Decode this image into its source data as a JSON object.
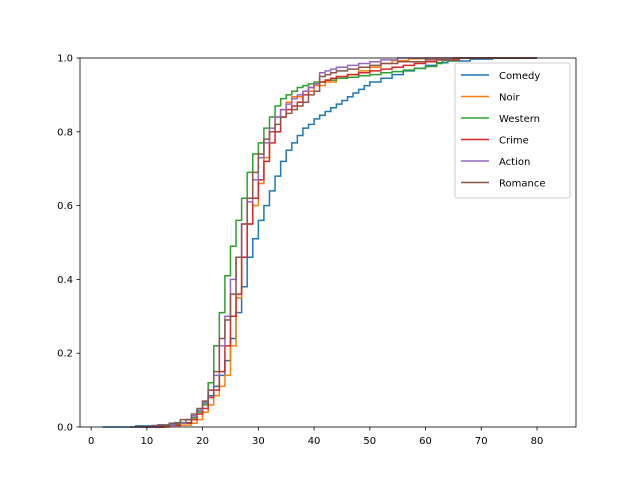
{
  "chart_data": {
    "type": "line",
    "subtype": "step-ecdf",
    "title": "",
    "xlabel": "",
    "ylabel": "",
    "xlim": [
      -2,
      87
    ],
    "ylim": [
      0,
      1
    ],
    "xticks": [
      0,
      10,
      20,
      30,
      40,
      50,
      60,
      70,
      80
    ],
    "yticks": [
      0.0,
      0.2,
      0.4,
      0.6,
      0.8,
      1.0
    ],
    "xtick_labels": [
      "0",
      "10",
      "20",
      "30",
      "40",
      "50",
      "60",
      "70",
      "80"
    ],
    "ytick_labels": [
      "0.0",
      "0.2",
      "0.4",
      "0.6",
      "0.8",
      "1.0"
    ],
    "grid": false,
    "legend_position": "upper right",
    "series": [
      {
        "name": "Comedy",
        "color": "#1f77b4",
        "points": [
          [
            2,
            0
          ],
          [
            8,
            0.003
          ],
          [
            12,
            0.006
          ],
          [
            15,
            0.012
          ],
          [
            17,
            0.02
          ],
          [
            18,
            0.03
          ],
          [
            19,
            0.045
          ],
          [
            20,
            0.065
          ],
          [
            21,
            0.085
          ],
          [
            22,
            0.11
          ],
          [
            23,
            0.14
          ],
          [
            24,
            0.18
          ],
          [
            25,
            0.24
          ],
          [
            26,
            0.31
          ],
          [
            27,
            0.38
          ],
          [
            28,
            0.46
          ],
          [
            29,
            0.51
          ],
          [
            30,
            0.56
          ],
          [
            31,
            0.6
          ],
          [
            32,
            0.64
          ],
          [
            33,
            0.68
          ],
          [
            34,
            0.72
          ],
          [
            35,
            0.75
          ],
          [
            36,
            0.77
          ],
          [
            37,
            0.79
          ],
          [
            38,
            0.81
          ],
          [
            39,
            0.82
          ],
          [
            40,
            0.835
          ],
          [
            41,
            0.845
          ],
          [
            42,
            0.855
          ],
          [
            43,
            0.865
          ],
          [
            44,
            0.875
          ],
          [
            45,
            0.885
          ],
          [
            46,
            0.895
          ],
          [
            47,
            0.905
          ],
          [
            48,
            0.915
          ],
          [
            49,
            0.925
          ],
          [
            50,
            0.935
          ],
          [
            52,
            0.945
          ],
          [
            54,
            0.955
          ],
          [
            56,
            0.965
          ],
          [
            58,
            0.972
          ],
          [
            60,
            0.98
          ],
          [
            62,
            0.987
          ],
          [
            64,
            0.992
          ],
          [
            68,
            0.997
          ],
          [
            72,
            1.0
          ]
        ]
      },
      {
        "name": "Noir",
        "color": "#ff7f0e",
        "points": [
          [
            10,
            0
          ],
          [
            14,
            0.005
          ],
          [
            18,
            0.01
          ],
          [
            19,
            0.02
          ],
          [
            20,
            0.04
          ],
          [
            21,
            0.06
          ],
          [
            22,
            0.085
          ],
          [
            23,
            0.11
          ],
          [
            24,
            0.14
          ],
          [
            25,
            0.22
          ],
          [
            26,
            0.35
          ],
          [
            27,
            0.46
          ],
          [
            28,
            0.55
          ],
          [
            29,
            0.6
          ],
          [
            30,
            0.66
          ],
          [
            31,
            0.73
          ],
          [
            32,
            0.8
          ],
          [
            33,
            0.84
          ],
          [
            34,
            0.86
          ],
          [
            35,
            0.88
          ],
          [
            36,
            0.895
          ],
          [
            38,
            0.91
          ],
          [
            40,
            0.925
          ],
          [
            42,
            0.935
          ],
          [
            44,
            0.945
          ],
          [
            46,
            0.955
          ],
          [
            48,
            0.965
          ],
          [
            50,
            0.975
          ],
          [
            52,
            0.985
          ],
          [
            54,
            0.993
          ],
          [
            57,
            0.998
          ],
          [
            60,
            1.0
          ]
        ]
      },
      {
        "name": "Western",
        "color": "#2ca02c",
        "points": [
          [
            9,
            0
          ],
          [
            13,
            0.006
          ],
          [
            16,
            0.012
          ],
          [
            18,
            0.025
          ],
          [
            19,
            0.04
          ],
          [
            20,
            0.06
          ],
          [
            21,
            0.12
          ],
          [
            22,
            0.22
          ],
          [
            23,
            0.31
          ],
          [
            24,
            0.41
          ],
          [
            25,
            0.49
          ],
          [
            26,
            0.56
          ],
          [
            27,
            0.62
          ],
          [
            28,
            0.69
          ],
          [
            29,
            0.74
          ],
          [
            30,
            0.77
          ],
          [
            31,
            0.81
          ],
          [
            32,
            0.84
          ],
          [
            33,
            0.87
          ],
          [
            34,
            0.89
          ],
          [
            35,
            0.9
          ],
          [
            36,
            0.91
          ],
          [
            37,
            0.92
          ],
          [
            38,
            0.925
          ],
          [
            39,
            0.93
          ],
          [
            40,
            0.935
          ],
          [
            42,
            0.94
          ],
          [
            44,
            0.945
          ],
          [
            46,
            0.948
          ],
          [
            48,
            0.952
          ],
          [
            50,
            0.955
          ],
          [
            52,
            0.96
          ],
          [
            54,
            0.963
          ],
          [
            56,
            0.967
          ],
          [
            58,
            0.972
          ],
          [
            60,
            0.977
          ],
          [
            62,
            0.985
          ],
          [
            63,
            0.993
          ],
          [
            66,
            1.0
          ]
        ]
      },
      {
        "name": "Crime",
        "color": "#d62728",
        "points": [
          [
            9,
            0
          ],
          [
            13,
            0.004
          ],
          [
            16,
            0.01
          ],
          [
            18,
            0.02
          ],
          [
            19,
            0.035
          ],
          [
            20,
            0.05
          ],
          [
            21,
            0.08
          ],
          [
            22,
            0.1
          ],
          [
            23,
            0.15
          ],
          [
            24,
            0.22
          ],
          [
            25,
            0.3
          ],
          [
            26,
            0.36
          ],
          [
            27,
            0.46
          ],
          [
            28,
            0.55
          ],
          [
            29,
            0.62
          ],
          [
            30,
            0.67
          ],
          [
            31,
            0.72
          ],
          [
            32,
            0.77
          ],
          [
            33,
            0.8
          ],
          [
            34,
            0.84
          ],
          [
            35,
            0.86
          ],
          [
            36,
            0.87
          ],
          [
            37,
            0.88
          ],
          [
            38,
            0.9
          ],
          [
            39,
            0.92
          ],
          [
            40,
            0.93
          ],
          [
            41,
            0.935
          ],
          [
            42,
            0.94
          ],
          [
            43,
            0.945
          ],
          [
            44,
            0.95
          ],
          [
            46,
            0.955
          ],
          [
            48,
            0.96
          ],
          [
            50,
            0.965
          ],
          [
            52,
            0.97
          ],
          [
            54,
            0.975
          ],
          [
            56,
            0.98
          ],
          [
            58,
            0.985
          ],
          [
            60,
            0.99
          ],
          [
            62,
            0.995
          ],
          [
            66,
            1.0
          ]
        ]
      },
      {
        "name": "Action",
        "color": "#9467bd",
        "points": [
          [
            8,
            0
          ],
          [
            12,
            0.005
          ],
          [
            15,
            0.01
          ],
          [
            17,
            0.02
          ],
          [
            18,
            0.03
          ],
          [
            19,
            0.045
          ],
          [
            20,
            0.07
          ],
          [
            21,
            0.1
          ],
          [
            22,
            0.14
          ],
          [
            23,
            0.22
          ],
          [
            24,
            0.3
          ],
          [
            25,
            0.4
          ],
          [
            26,
            0.46
          ],
          [
            27,
            0.55
          ],
          [
            28,
            0.61
          ],
          [
            29,
            0.67
          ],
          [
            30,
            0.73
          ],
          [
            31,
            0.77
          ],
          [
            32,
            0.81
          ],
          [
            33,
            0.84
          ],
          [
            34,
            0.86
          ],
          [
            35,
            0.875
          ],
          [
            36,
            0.89
          ],
          [
            37,
            0.9
          ],
          [
            38,
            0.91
          ],
          [
            39,
            0.92
          ],
          [
            40,
            0.93
          ],
          [
            41,
            0.96
          ],
          [
            42,
            0.965
          ],
          [
            43,
            0.97
          ],
          [
            44,
            0.975
          ],
          [
            46,
            0.98
          ],
          [
            48,
            0.985
          ],
          [
            50,
            0.99
          ],
          [
            52,
            0.995
          ],
          [
            55,
            1.0
          ]
        ]
      },
      {
        "name": "Romance",
        "color": "#8c564b",
        "points": [
          [
            7,
            0
          ],
          [
            11,
            0.004
          ],
          [
            14,
            0.01
          ],
          [
            16,
            0.02
          ],
          [
            18,
            0.035
          ],
          [
            19,
            0.05
          ],
          [
            20,
            0.07
          ],
          [
            21,
            0.1
          ],
          [
            22,
            0.15
          ],
          [
            23,
            0.24
          ],
          [
            24,
            0.29
          ],
          [
            25,
            0.36
          ],
          [
            26,
            0.46
          ],
          [
            27,
            0.55
          ],
          [
            28,
            0.62
          ],
          [
            29,
            0.69
          ],
          [
            30,
            0.74
          ],
          [
            31,
            0.78
          ],
          [
            32,
            0.8
          ],
          [
            33,
            0.82
          ],
          [
            34,
            0.84
          ],
          [
            35,
            0.85
          ],
          [
            36,
            0.86
          ],
          [
            37,
            0.87
          ],
          [
            38,
            0.88
          ],
          [
            39,
            0.9
          ],
          [
            40,
            0.91
          ],
          [
            41,
            0.95
          ],
          [
            42,
            0.955
          ],
          [
            43,
            0.96
          ],
          [
            44,
            0.965
          ],
          [
            46,
            0.97
          ],
          [
            48,
            0.975
          ],
          [
            50,
            0.98
          ],
          [
            52,
            0.985
          ],
          [
            55,
            0.99
          ],
          [
            60,
            0.995
          ],
          [
            65,
            1.0
          ]
        ]
      }
    ]
  }
}
